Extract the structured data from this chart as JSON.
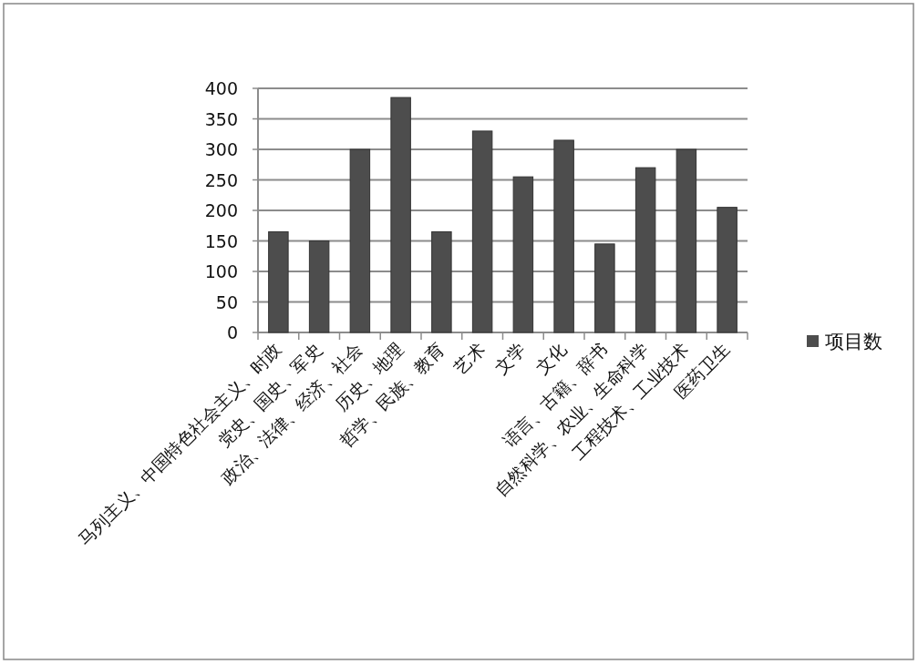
{
  "chart_data": {
    "type": "bar",
    "categories": [
      "马列主义、中国特色社会主义、时政",
      "党史、国史、军史",
      "政治、法律、经济、社会",
      "历史、地理",
      "哲学、民族、教育",
      "艺术",
      "文学",
      "文化",
      "语言、古籍、辞书",
      "自然科学、农业、生命科学",
      "工程技术、工业技术",
      "医药卫生"
    ],
    "series": [
      {
        "name": "项目数",
        "color": "#4d4d4d",
        "values": [
          165,
          150,
          300,
          385,
          165,
          330,
          255,
          315,
          145,
          270,
          300,
          205
        ]
      }
    ],
    "ylim": [
      0,
      400
    ],
    "yticks": [
      0,
      50,
      100,
      150,
      200,
      250,
      300,
      350,
      400
    ],
    "grid": "y",
    "legend": "right"
  }
}
